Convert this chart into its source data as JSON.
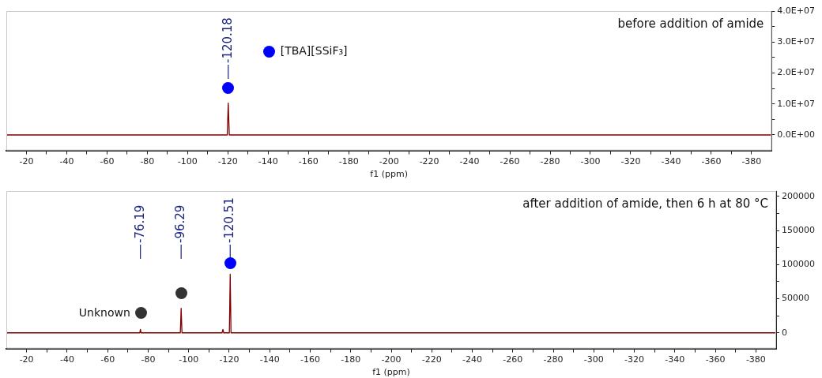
{
  "chart_data": [
    {
      "type": "line",
      "xlabel": "f1 (ppm)",
      "line_style": "solid",
      "marker": "none",
      "grid": false,
      "legend": false,
      "series": [
        {
          "color": "#7f0000",
          "x": [
            -10,
            -119.7,
            -120.18,
            -120.7,
            -390
          ],
          "values": [
            0,
            0,
            10300000,
            0,
            0
          ]
        }
      ],
      "xlim": [
        -10,
        -390
      ],
      "xticks": [
        {
          "value": -20,
          "label": "-20"
        },
        {
          "value": -30,
          "label": null
        },
        {
          "value": -40,
          "label": "-40"
        },
        {
          "value": -50,
          "label": null
        },
        {
          "value": -60,
          "label": "-60"
        },
        {
          "value": -70,
          "label": null
        },
        {
          "value": -80,
          "label": "-80"
        },
        {
          "value": -90,
          "label": null
        },
        {
          "value": -100,
          "label": "-100"
        },
        {
          "value": -110,
          "label": null
        },
        {
          "value": -120,
          "label": "-120"
        },
        {
          "value": -130,
          "label": null
        },
        {
          "value": -140,
          "label": "-140"
        },
        {
          "value": -150,
          "label": null
        },
        {
          "value": -160,
          "label": "-160"
        },
        {
          "value": -170,
          "label": null
        },
        {
          "value": -180,
          "label": "-180"
        },
        {
          "value": -190,
          "label": null
        },
        {
          "value": -200,
          "label": "-200"
        },
        {
          "value": -210,
          "label": null
        },
        {
          "value": -220,
          "label": "-220"
        },
        {
          "value": -230,
          "label": null
        },
        {
          "value": -240,
          "label": "-240"
        },
        {
          "value": -250,
          "label": null
        },
        {
          "value": -260,
          "label": "-260"
        },
        {
          "value": -270,
          "label": null
        },
        {
          "value": -280,
          "label": "-280"
        },
        {
          "value": -290,
          "label": null
        },
        {
          "value": -300,
          "label": "-300"
        },
        {
          "value": -310,
          "label": null
        },
        {
          "value": -320,
          "label": "-320"
        },
        {
          "value": -330,
          "label": null
        },
        {
          "value": -340,
          "label": "-340"
        },
        {
          "value": -350,
          "label": null
        },
        {
          "value": -360,
          "label": "-360"
        },
        {
          "value": -370,
          "label": null
        },
        {
          "value": -380,
          "label": "-380"
        }
      ],
      "ylim": [
        -5000000,
        40000000
      ],
      "yticks": [
        {
          "value": 0,
          "label": "0.0E+00"
        },
        {
          "value": 5000000,
          "label": null
        },
        {
          "value": 10000000,
          "label": "1.0E+07"
        },
        {
          "value": 15000000,
          "label": null
        },
        {
          "value": 20000000,
          "label": "2.0E+07"
        },
        {
          "value": 25000000,
          "label": null
        },
        {
          "value": 30000000,
          "label": "3.0E+07"
        },
        {
          "value": 35000000,
          "label": null
        },
        {
          "value": 40000000,
          "label": "4.0E+07"
        }
      ],
      "annotations": [
        "before addition of amide",
        {
          "text": "-120.18",
          "x": -120.18
        },
        "[TBA][SSiF₃]"
      ]
    },
    {
      "type": "line",
      "xlabel": "f1 (ppm)",
      "line_style": "solid",
      "marker": "none",
      "grid": false,
      "legend": false,
      "series": [
        {
          "color": "#7f0000",
          "x": [
            -10,
            -75.9,
            -76.19,
            -76.5,
            -95.9,
            -96.29,
            -96.7,
            -116.5,
            -116.9,
            -117.3,
            -120.1,
            -120.51,
            -120.9,
            -390
          ],
          "values": [
            0,
            0,
            5000,
            0,
            0,
            36000,
            0,
            0,
            5000,
            0,
            0,
            86000,
            0,
            0
          ]
        }
      ],
      "xlim": [
        -10,
        -390
      ],
      "xticks": [
        {
          "value": -20,
          "label": "-20"
        },
        {
          "value": -30,
          "label": null
        },
        {
          "value": -40,
          "label": "-40"
        },
        {
          "value": -50,
          "label": null
        },
        {
          "value": -60,
          "label": "-60"
        },
        {
          "value": -70,
          "label": null
        },
        {
          "value": -80,
          "label": "-80"
        },
        {
          "value": -90,
          "label": null
        },
        {
          "value": -100,
          "label": "-100"
        },
        {
          "value": -110,
          "label": null
        },
        {
          "value": -120,
          "label": "-120"
        },
        {
          "value": -130,
          "label": null
        },
        {
          "value": -140,
          "label": "-140"
        },
        {
          "value": -150,
          "label": null
        },
        {
          "value": -160,
          "label": "-160"
        },
        {
          "value": -170,
          "label": null
        },
        {
          "value": -180,
          "label": "-180"
        },
        {
          "value": -190,
          "label": null
        },
        {
          "value": -200,
          "label": "-200"
        },
        {
          "value": -210,
          "label": null
        },
        {
          "value": -220,
          "label": "-220"
        },
        {
          "value": -230,
          "label": null
        },
        {
          "value": -240,
          "label": "-240"
        },
        {
          "value": -250,
          "label": null
        },
        {
          "value": -260,
          "label": "-260"
        },
        {
          "value": -270,
          "label": null
        },
        {
          "value": -280,
          "label": "-280"
        },
        {
          "value": -290,
          "label": null
        },
        {
          "value": -300,
          "label": "-300"
        },
        {
          "value": -310,
          "label": null
        },
        {
          "value": -320,
          "label": "-320"
        },
        {
          "value": -330,
          "label": null
        },
        {
          "value": -340,
          "label": "-340"
        },
        {
          "value": -350,
          "label": null
        },
        {
          "value": -360,
          "label": "-360"
        },
        {
          "value": -370,
          "label": null
        },
        {
          "value": -380,
          "label": "-380"
        }
      ],
      "ylim": [
        -23000,
        208000
      ],
      "yticks": [
        0,
        {
          "value": 25000,
          "label": null
        },
        50000,
        {
          "value": 75000,
          "label": null
        },
        100000,
        {
          "value": 125000,
          "label": null
        },
        150000,
        {
          "value": 175000,
          "label": null
        },
        200000
      ],
      "annotations": [
        "after addition of amide, then 6 h at 80 °C",
        {
          "text": "-76.19",
          "x": -76.19
        },
        {
          "text": "-96.29",
          "x": -96.29
        },
        {
          "text": "-120.51",
          "x": -120.51
        },
        "Unknown"
      ]
    }
  ]
}
